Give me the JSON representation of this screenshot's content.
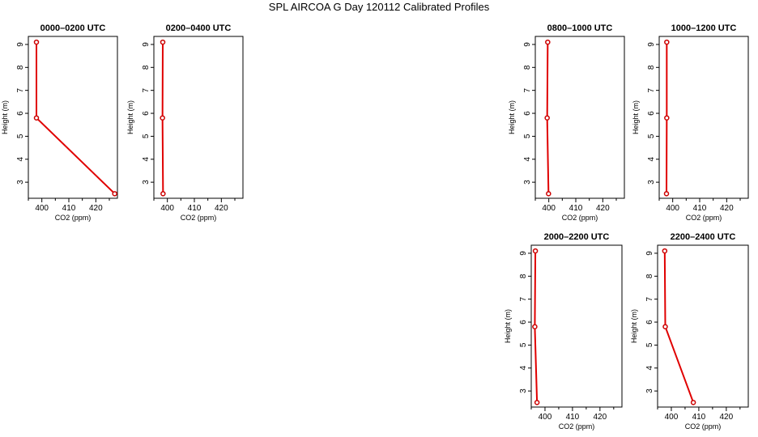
{
  "title": "SPL AIRCOA G  Day 120112  Calibrated Profiles",
  "colors": {
    "line": "#e00000",
    "marker": "#cc0000",
    "axis": "#000000"
  },
  "chart_data": [
    {
      "type": "line",
      "title": "0000–0200 UTC",
      "xlabel": "CO2 (ppm)",
      "ylabel": "Height (m)",
      "xlim": [
        395,
        428
      ],
      "ylim": [
        2.3,
        9.35
      ],
      "xticks": [
        400,
        410,
        420
      ],
      "yticks": [
        3,
        4,
        5,
        6,
        7,
        8,
        9
      ],
      "x": [
        398,
        398,
        427
      ],
      "y": [
        9.1,
        5.8,
        2.5
      ]
    },
    {
      "type": "line",
      "title": "0200–0400 UTC",
      "xlabel": "CO2 (ppm)",
      "ylabel": "Height (m)",
      "xlim": [
        395,
        428
      ],
      "ylim": [
        2.3,
        9.35
      ],
      "xticks": [
        400,
        410,
        420
      ],
      "yticks": [
        3,
        4,
        5,
        6,
        7,
        8,
        9
      ],
      "x": [
        398.3,
        398.2,
        398.4
      ],
      "y": [
        9.1,
        5.8,
        2.5
      ]
    },
    {
      "type": "line",
      "title": "0800–1000 UTC",
      "xlabel": "CO2 (ppm)",
      "ylabel": "Height (m)",
      "xlim": [
        395,
        428
      ],
      "ylim": [
        2.3,
        9.35
      ],
      "xticks": [
        400,
        410,
        420
      ],
      "yticks": [
        3,
        4,
        5,
        6,
        7,
        8,
        9
      ],
      "x": [
        399.6,
        399.4,
        399.9
      ],
      "y": [
        9.1,
        5.8,
        2.5
      ]
    },
    {
      "type": "line",
      "title": "1000–1200 UTC",
      "xlabel": "CO2 (ppm)",
      "ylabel": "Height (m)",
      "xlim": [
        395,
        428
      ],
      "ylim": [
        2.3,
        9.35
      ],
      "xticks": [
        400,
        410,
        420
      ],
      "yticks": [
        3,
        4,
        5,
        6,
        7,
        8,
        9
      ],
      "x": [
        397.8,
        397.8,
        397.7
      ],
      "y": [
        9.1,
        5.8,
        2.5
      ]
    },
    {
      "type": "line",
      "title": "2000–2200 UTC",
      "xlabel": "CO2 (ppm)",
      "ylabel": "Height (m)",
      "xlim": [
        395,
        428
      ],
      "ylim": [
        2.3,
        9.35
      ],
      "xticks": [
        400,
        410,
        420
      ],
      "yticks": [
        3,
        4,
        5,
        6,
        7,
        8,
        9
      ],
      "x": [
        396.5,
        396.3,
        397.1
      ],
      "y": [
        9.1,
        5.8,
        2.5
      ]
    },
    {
      "type": "line",
      "title": "2200–2400 UTC",
      "xlabel": "CO2 (ppm)",
      "ylabel": "Height (m)",
      "xlim": [
        395,
        428
      ],
      "ylim": [
        2.3,
        9.35
      ],
      "xticks": [
        400,
        410,
        420
      ],
      "yticks": [
        3,
        4,
        5,
        6,
        7,
        8,
        9
      ],
      "x": [
        397.6,
        397.8,
        408
      ],
      "y": [
        9.1,
        5.8,
        2.5
      ]
    }
  ]
}
